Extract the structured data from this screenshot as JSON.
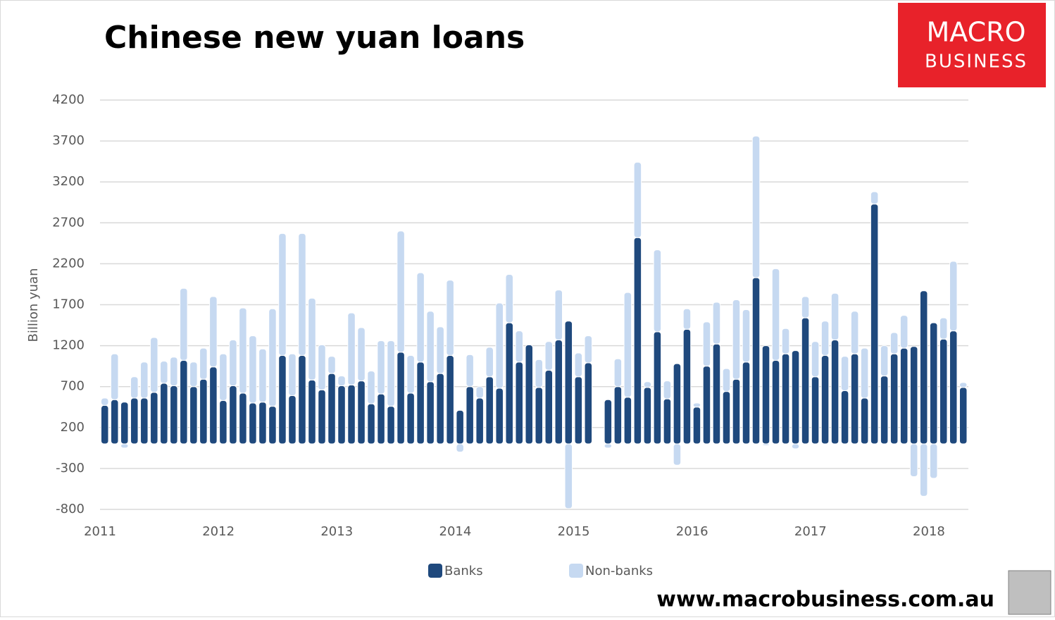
{
  "chart_data": {
    "type": "stacked_bar",
    "title": "Chinese new yuan loans",
    "y_label": "Billion yuan",
    "logo": [
      "MACRO",
      "BUSINESS"
    ],
    "footer": "www.macrobusiness.com.au",
    "categories": [
      "2011",
      null,
      null,
      null,
      null,
      null,
      null,
      null,
      null,
      null,
      null,
      null,
      "2012",
      null,
      null,
      null,
      null,
      null,
      null,
      null,
      null,
      null,
      null,
      null,
      "2013",
      null,
      null,
      null,
      null,
      null,
      null,
      null,
      null,
      null,
      null,
      null,
      "2014",
      null,
      null,
      null,
      null,
      null,
      null,
      null,
      null,
      null,
      null,
      null,
      "2015",
      null,
      null,
      null,
      null,
      null,
      null,
      null,
      null,
      null,
      null,
      null,
      "2016",
      null,
      null,
      null,
      null,
      null,
      null,
      null,
      null,
      null,
      null,
      null,
      "2017",
      null,
      null,
      null,
      null,
      null,
      null,
      null,
      null,
      null,
      null,
      null,
      "2018",
      null,
      null,
      null
    ],
    "series": [
      {
        "name": "Banks",
        "color": "#1f497d",
        "values": [
          470,
          540,
          510,
          560,
          560,
          630,
          740,
          710,
          1020,
          700,
          790,
          940,
          530,
          710,
          620,
          500,
          510,
          460,
          1080,
          590,
          1080,
          780,
          660,
          860,
          710,
          720,
          770,
          490,
          610,
          460,
          1120,
          620,
          1000,
          760,
          860,
          1080,
          410,
          700,
          560,
          820,
          680,
          1480,
          1000,
          1210,
          690,
          900,
          1270,
          1500,
          820,
          990,
          null,
          540,
          700,
          570,
          2520,
          690,
          1370,
          550,
          980,
          1400,
          450,
          950,
          1220,
          640,
          790,
          1000,
          2030,
          1200,
          1020,
          1100,
          1140,
          1540,
          820,
          1080,
          1270,
          650,
          1100,
          560,
          2930,
          830,
          1100,
          1170,
          1190,
          1870,
          1480,
          1280,
          1380,
          690
        ]
      },
      {
        "name": "Non-banks",
        "color": "#c6d9f1",
        "values": [
          90,
          560,
          -50,
          260,
          440,
          670,
          270,
          350,
          880,
          300,
          380,
          860,
          570,
          560,
          1040,
          820,
          650,
          1190,
          1490,
          510,
          1490,
          1000,
          550,
          210,
          120,
          880,
          650,
          400,
          650,
          800,
          1480,
          460,
          1090,
          860,
          570,
          920,
          -100,
          390,
          140,
          360,
          1040,
          590,
          380,
          0,
          340,
          350,
          610,
          -790,
          290,
          330,
          null,
          -50,
          340,
          1280,
          920,
          70,
          1000,
          220,
          -260,
          250,
          50,
          540,
          510,
          280,
          970,
          640,
          1730,
          -20,
          1120,
          310,
          -60,
          260,
          430,
          420,
          570,
          420,
          520,
          610,
          150,
          370,
          260,
          400,
          -400,
          -640,
          -420,
          260,
          850,
          60
        ]
      }
    ],
    "ylim": [
      -800,
      4200
    ],
    "yticks": [
      -800,
      -300,
      200,
      700,
      1200,
      1700,
      2200,
      2700,
      3200,
      3700,
      4200
    ],
    "grid": true,
    "legend": "bottom"
  }
}
